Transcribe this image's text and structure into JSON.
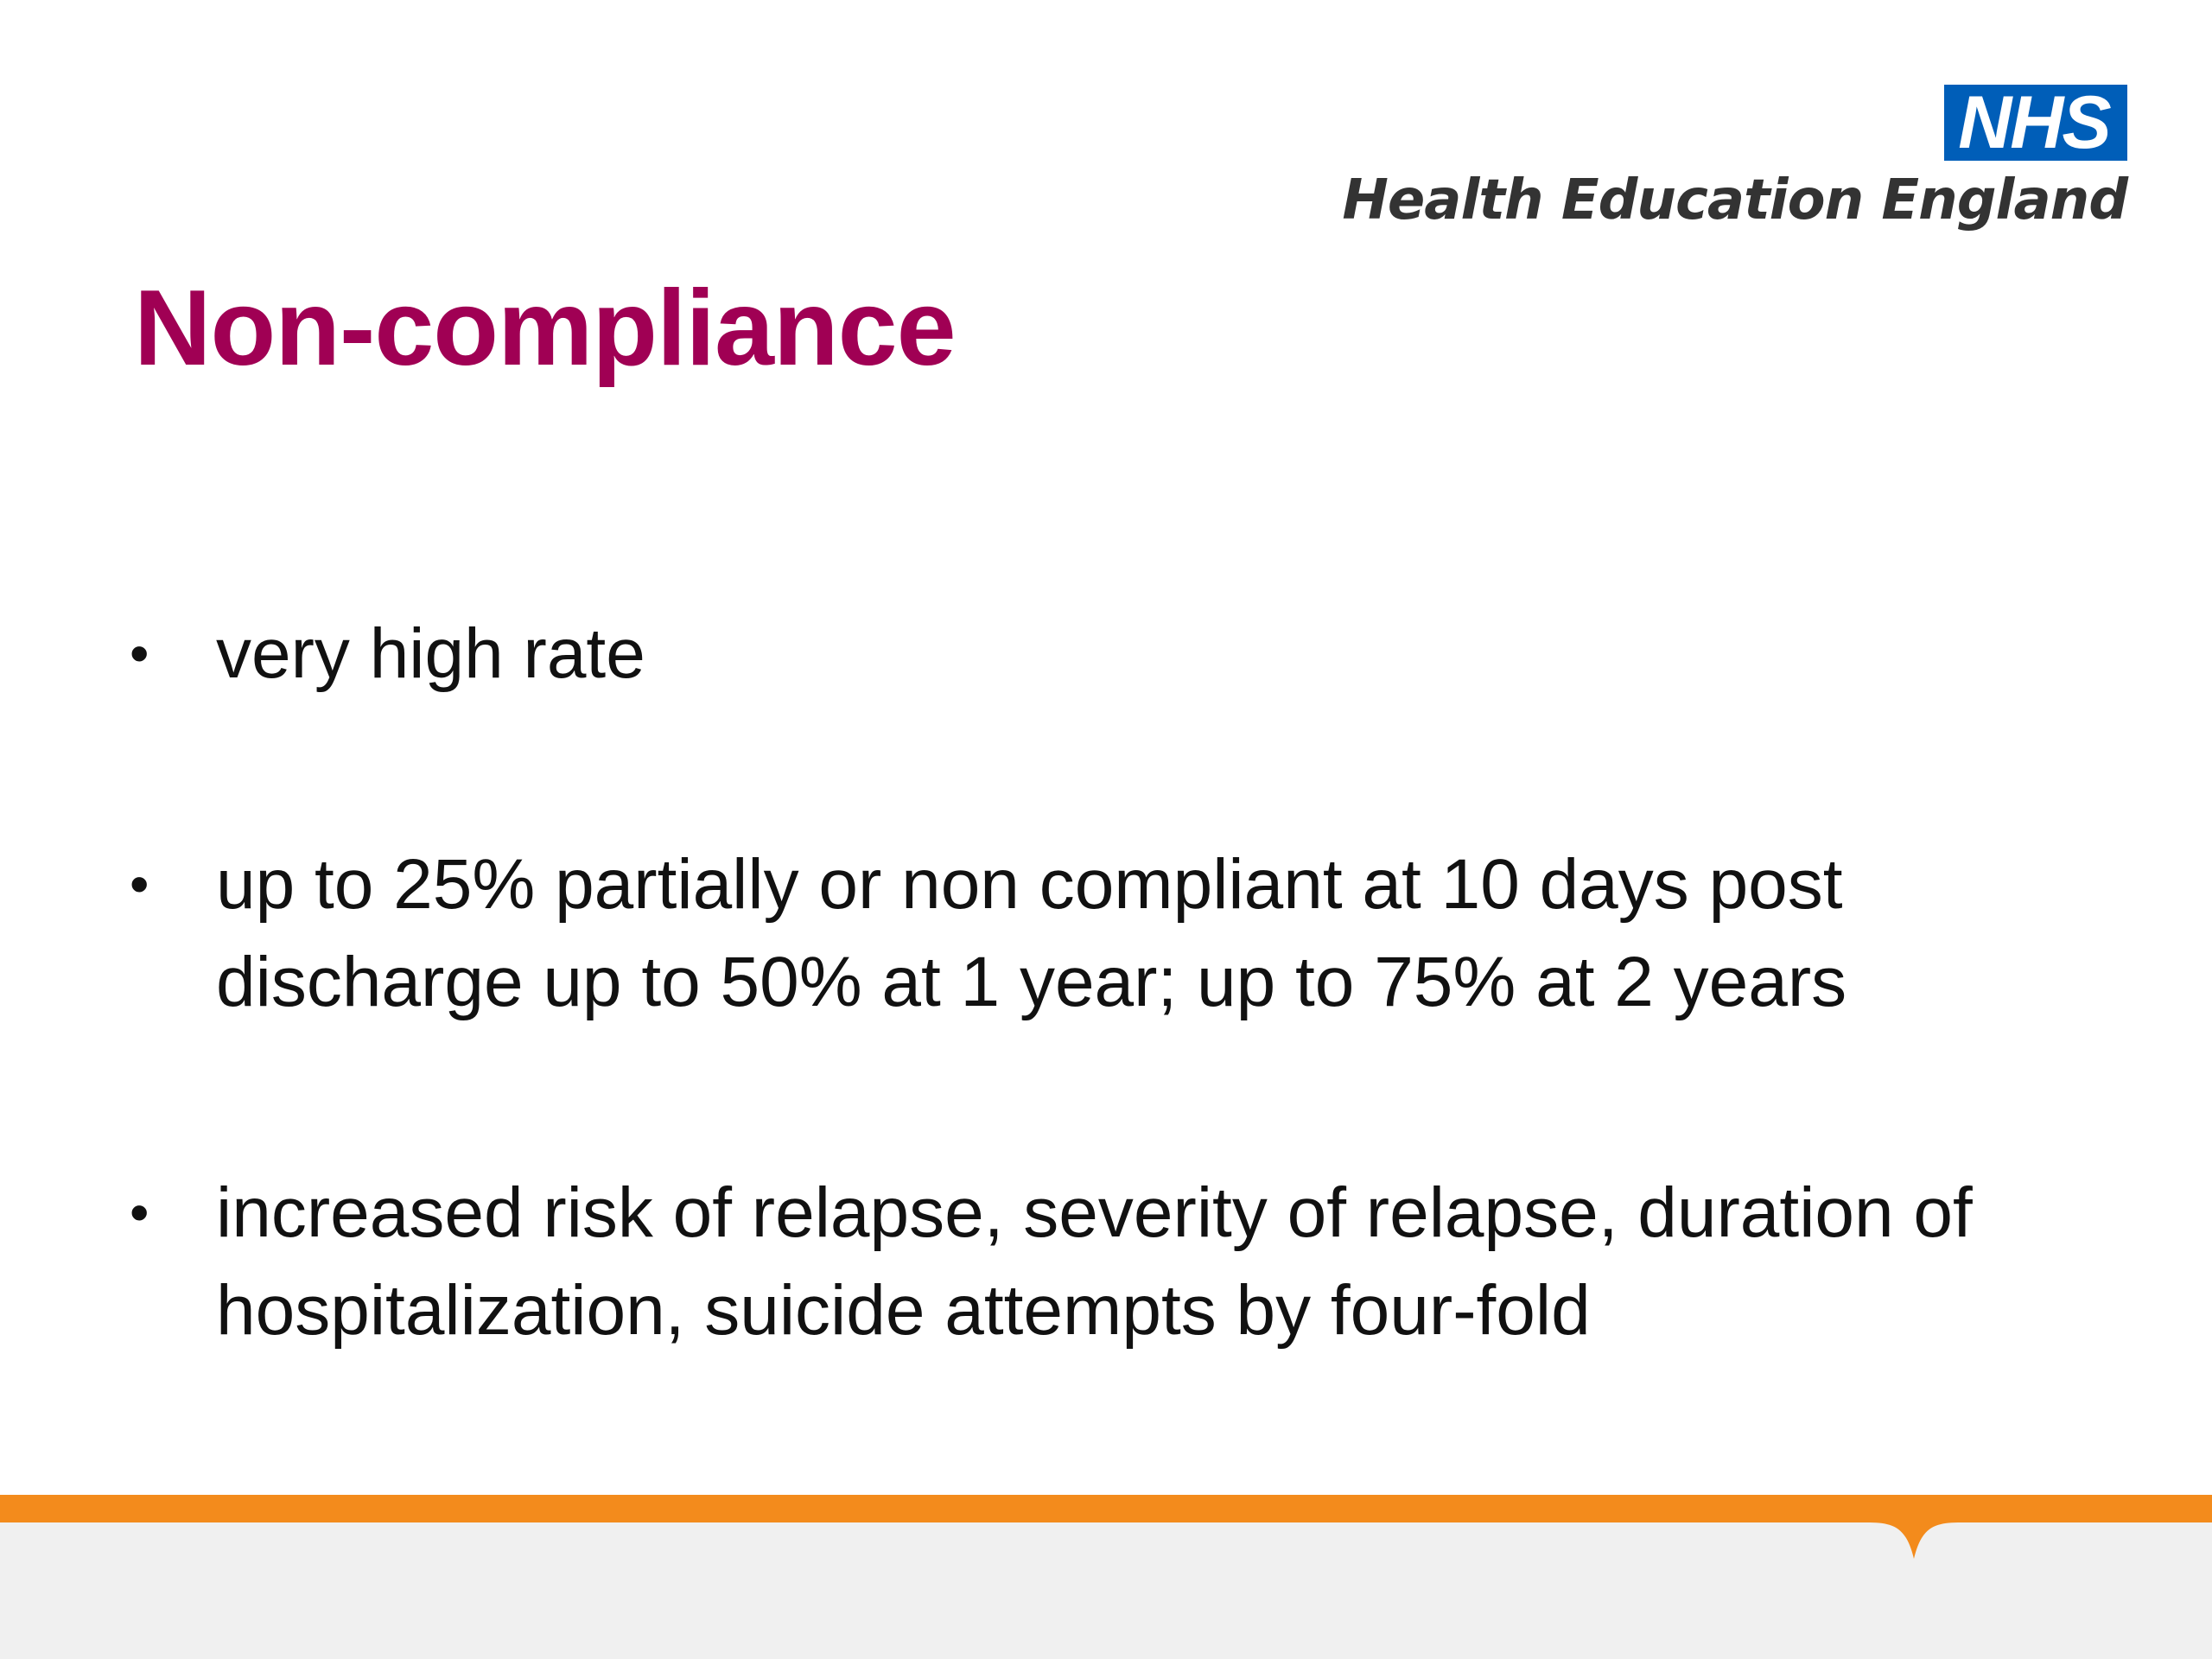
{
  "logo": {
    "nhs_label": "NHS",
    "org_name": "Health Education England"
  },
  "title": "Non-compliance",
  "bullets": [
    {
      "symbol": "•",
      "text": "very high rate"
    },
    {
      "symbol": "•",
      "text": "up to 25% partially or non compliant at 10 days post discharge up to 50% at 1 year; up to 75% at 2 years"
    },
    {
      "symbol": "•",
      "text": "increased risk of relapse, severity of relapse, duration of hospitalization, suicide attempts by four-fold"
    }
  ],
  "colors": {
    "title": "#a00054",
    "nhs_blue": "#005eb8",
    "footer_accent": "#f38b1c",
    "footer_band": "#f0f0f0"
  }
}
